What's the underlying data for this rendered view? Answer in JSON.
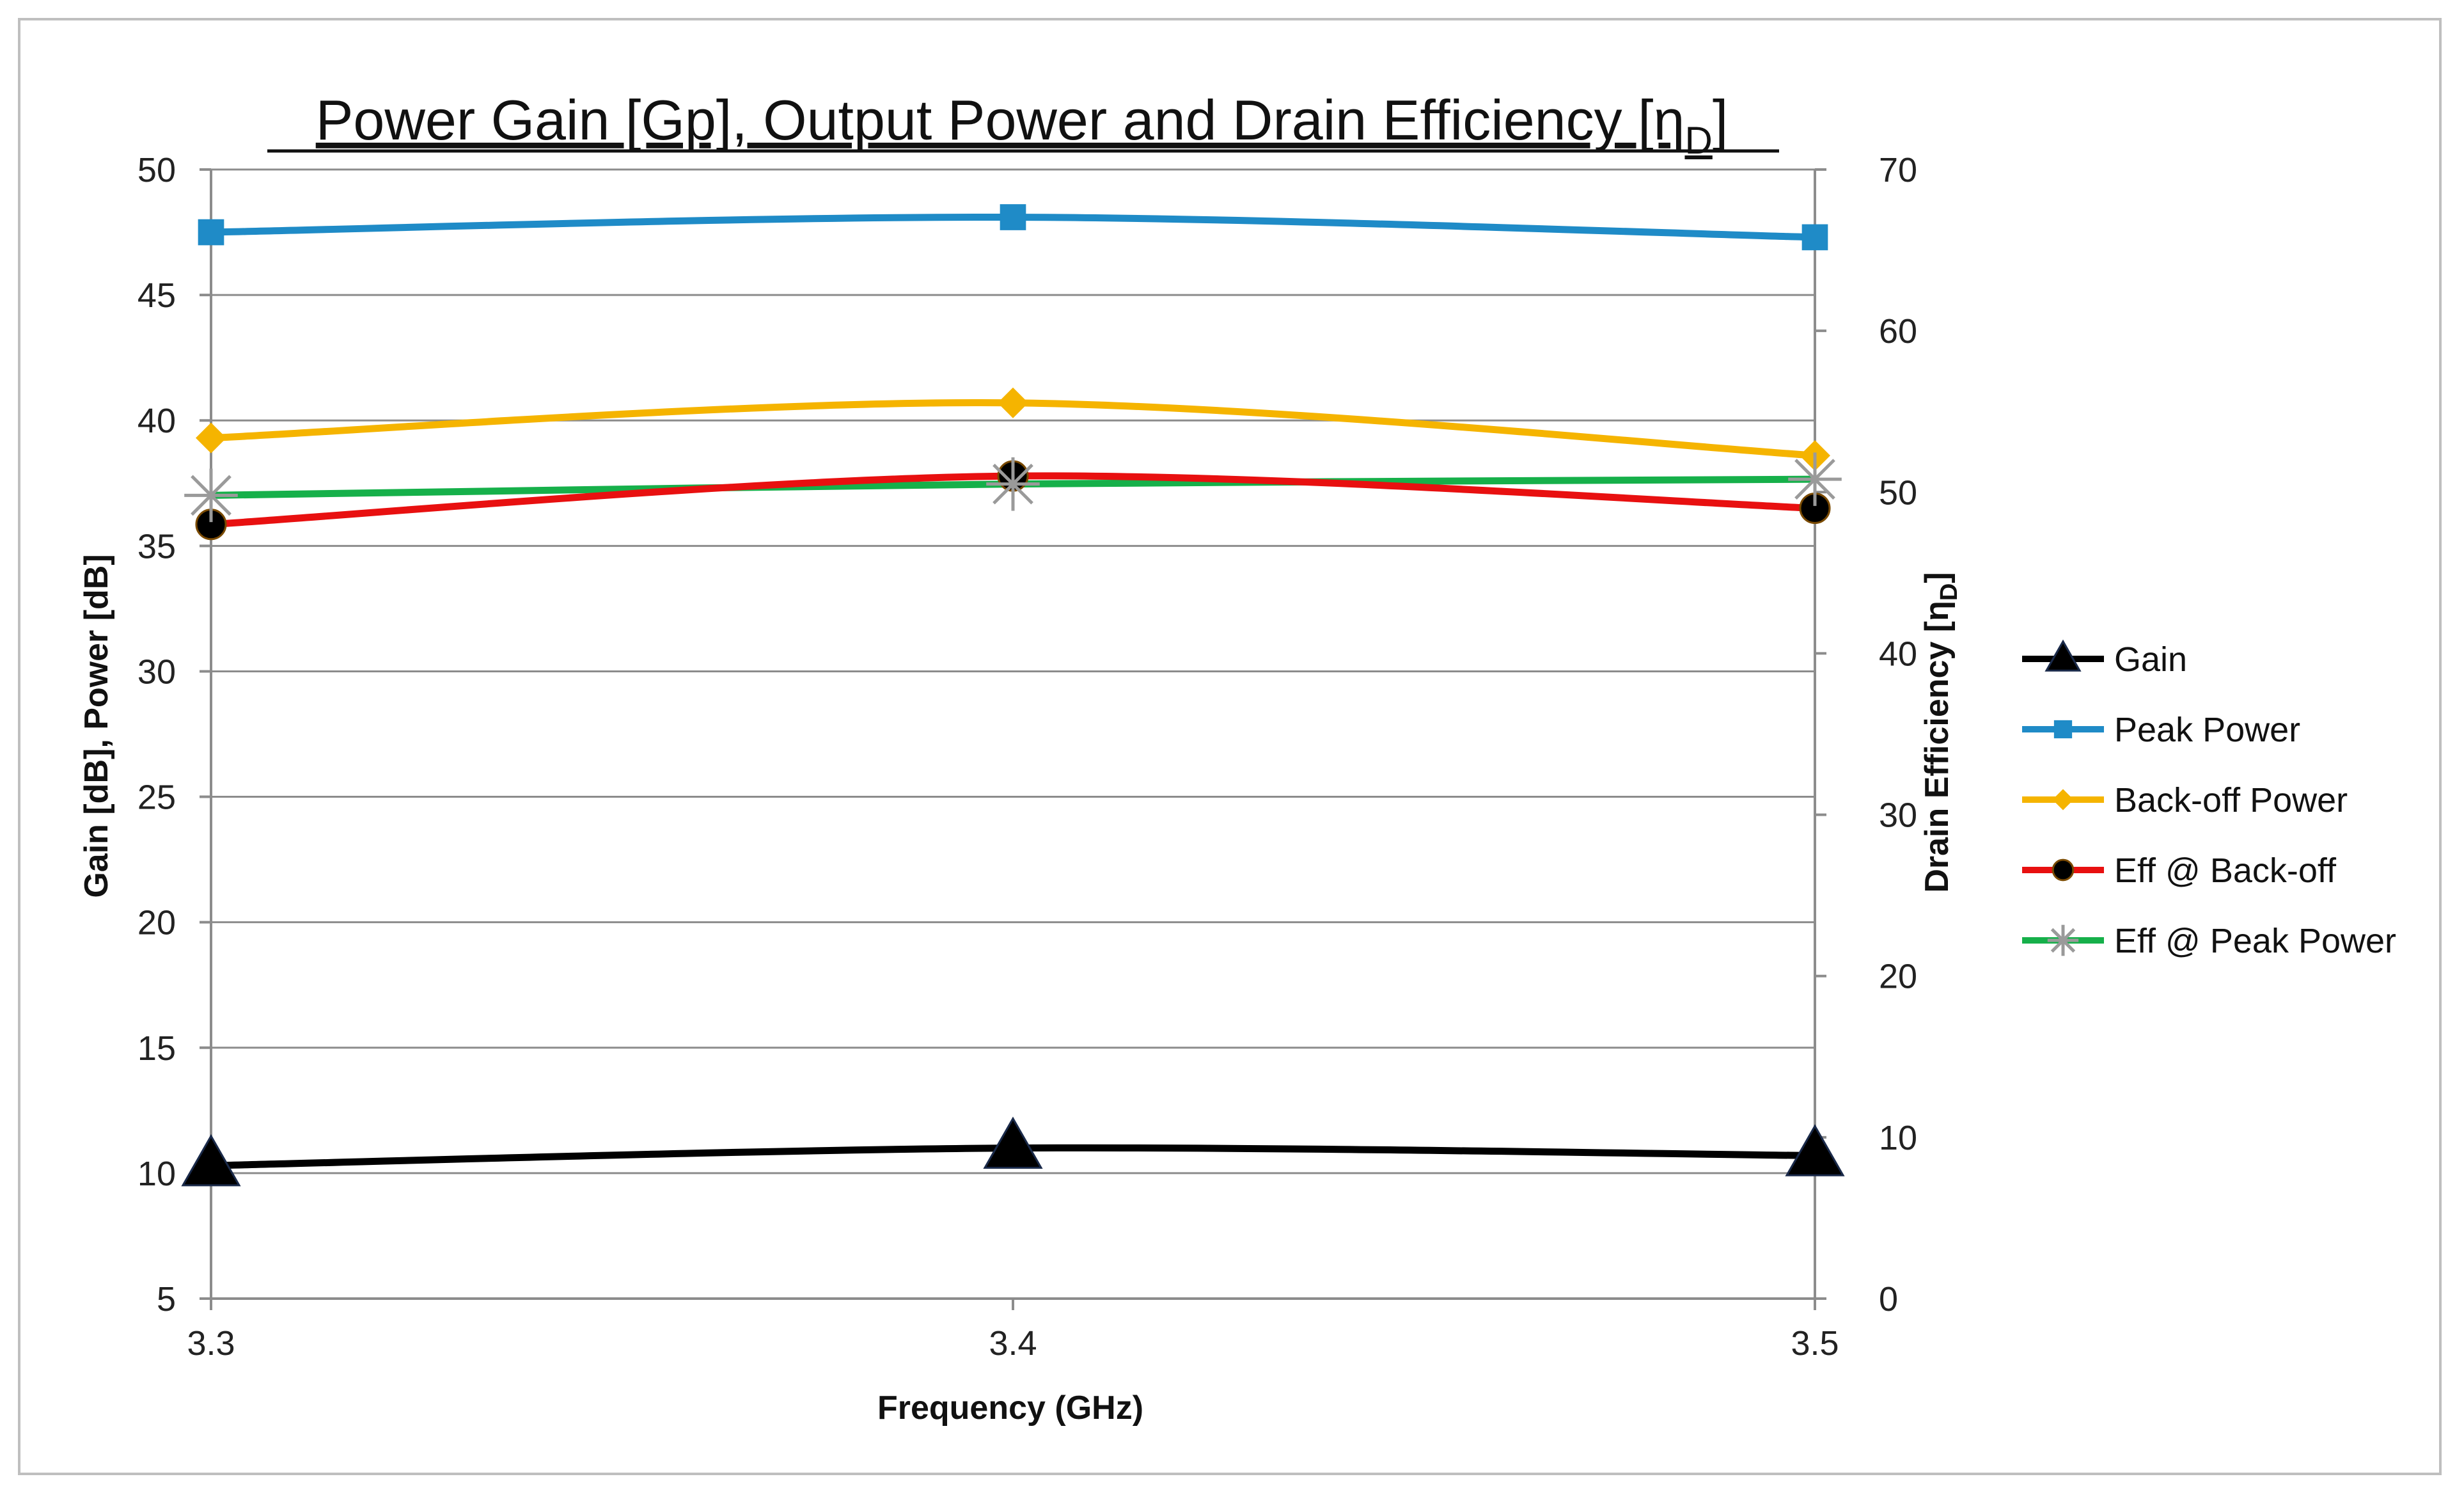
{
  "chart_data": {
    "type": "line",
    "title": "Power Gain [Gp], Output Power and Drain Efficiency [η",
    "title_sub": "D",
    "title_end": "]",
    "xlabel": "Frequency (GHz)",
    "ylabel_left": "Gain [dB], Power [dB]",
    "ylabel_right": "Drain Efficiency [η",
    "ylabel_right_sub": "D",
    "ylabel_right_end": "]",
    "categories": [
      "3.3",
      "3.4",
      "3.5"
    ],
    "x_tick_labels": [
      "3.3",
      "3.4",
      "3.5"
    ],
    "ylim_left": [
      5,
      50
    ],
    "ylim_right": [
      0,
      70
    ],
    "y_left_ticks": [
      5,
      10,
      15,
      20,
      25,
      30,
      35,
      40,
      45,
      50
    ],
    "y_right_ticks": [
      0,
      10,
      20,
      30,
      40,
      50,
      60,
      70
    ],
    "grid": true,
    "legend_position": "right",
    "series": [
      {
        "name": "Gain",
        "axis": "left",
        "values": [
          10.3,
          11.0,
          10.7
        ],
        "color": "#000000",
        "marker": "triangle"
      },
      {
        "name": "Peak Power",
        "axis": "left",
        "values": [
          47.5,
          48.1,
          47.3
        ],
        "color": "#1f8bc7",
        "marker": "square"
      },
      {
        "name": "Back-off Power",
        "axis": "left",
        "values": [
          39.3,
          40.7,
          38.6
        ],
        "color": "#f5b400",
        "marker": "diamond"
      },
      {
        "name": "Eff @ Back-off",
        "axis": "right",
        "values": [
          48.0,
          51.0,
          49.0
        ],
        "color": "#e81010",
        "marker": "circle"
      },
      {
        "name": "Eff @ Peak Power",
        "axis": "right",
        "values": [
          49.8,
          50.5,
          50.8
        ],
        "color": "#16b04a",
        "marker": "star"
      }
    ]
  }
}
